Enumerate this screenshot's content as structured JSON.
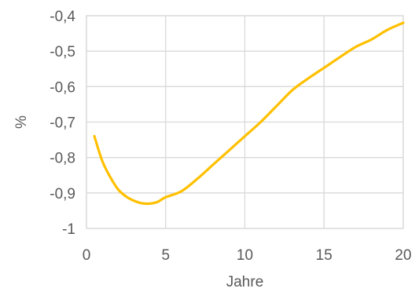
{
  "chart_data": {
    "type": "line",
    "title": "",
    "xlabel": "Jahre",
    "ylabel": "%",
    "xlim": [
      0,
      20
    ],
    "ylim": [
      -1,
      -0.4
    ],
    "x_ticks": [
      0,
      5,
      10,
      15,
      20
    ],
    "x_tick_labels": [
      "0",
      "5",
      "10",
      "15",
      "20"
    ],
    "y_ticks": [
      -1,
      -0.9,
      -0.8,
      -0.7,
      -0.6,
      -0.5,
      -0.4
    ],
    "y_tick_labels": [
      "-1",
      "-0,9",
      "-0,8",
      "-0,7",
      "-0,6",
      "-0,5",
      "-0,4"
    ],
    "grid": true,
    "legend": "none",
    "series": [
      {
        "color": "#ffc000",
        "x": [
          0.5,
          1,
          1.5,
          2,
          2.5,
          3,
          3.5,
          4,
          4.5,
          5,
          6,
          7,
          8,
          9,
          10,
          11,
          12,
          13,
          14,
          15,
          16,
          17,
          18,
          19,
          20
        ],
        "y": [
          -0.74,
          -0.81,
          -0.855,
          -0.89,
          -0.91,
          -0.922,
          -0.929,
          -0.93,
          -0.925,
          -0.912,
          -0.895,
          -0.86,
          -0.82,
          -0.78,
          -0.74,
          -0.7,
          -0.655,
          -0.61,
          -0.577,
          -0.547,
          -0.517,
          -0.488,
          -0.467,
          -0.44,
          -0.42
        ]
      }
    ]
  }
}
